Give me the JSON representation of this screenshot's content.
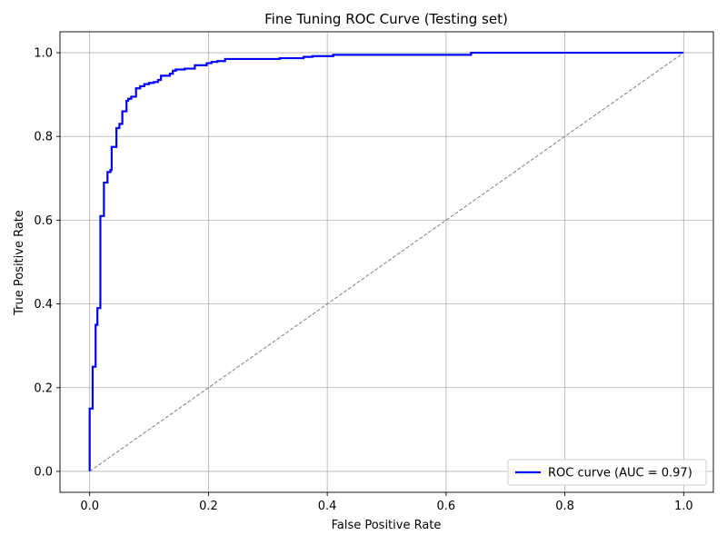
{
  "chart_data": {
    "type": "line",
    "title": "Fine Tuning ROC Curve (Testing set)",
    "xlabel": "False Positive Rate",
    "ylabel": "True Positive Rate",
    "xlim": [
      -0.05,
      1.05
    ],
    "ylim": [
      -0.05,
      1.05
    ],
    "xticks": [
      "0.0",
      "0.2",
      "0.4",
      "0.6",
      "0.8",
      "1.0"
    ],
    "yticks": [
      "0.0",
      "0.2",
      "0.4",
      "0.6",
      "0.8",
      "1.0"
    ],
    "grid": true,
    "legend_position": "lower-right",
    "series": [
      {
        "name": "ROC curve (AUC = 0.97)",
        "color": "#0000ff",
        "style": "step",
        "points": [
          [
            0.0,
            0.0
          ],
          [
            0.0,
            0.15
          ],
          [
            0.005,
            0.15
          ],
          [
            0.005,
            0.25
          ],
          [
            0.01,
            0.25
          ],
          [
            0.01,
            0.35
          ],
          [
            0.013,
            0.35
          ],
          [
            0.013,
            0.39
          ],
          [
            0.018,
            0.39
          ],
          [
            0.018,
            0.61
          ],
          [
            0.024,
            0.61
          ],
          [
            0.024,
            0.69
          ],
          [
            0.03,
            0.69
          ],
          [
            0.03,
            0.715
          ],
          [
            0.035,
            0.715
          ],
          [
            0.035,
            0.72
          ],
          [
            0.037,
            0.72
          ],
          [
            0.037,
            0.775
          ],
          [
            0.045,
            0.775
          ],
          [
            0.045,
            0.82
          ],
          [
            0.05,
            0.82
          ],
          [
            0.05,
            0.83
          ],
          [
            0.055,
            0.83
          ],
          [
            0.055,
            0.86
          ],
          [
            0.062,
            0.86
          ],
          [
            0.062,
            0.885
          ],
          [
            0.065,
            0.885
          ],
          [
            0.065,
            0.89
          ],
          [
            0.07,
            0.89
          ],
          [
            0.07,
            0.895
          ],
          [
            0.078,
            0.895
          ],
          [
            0.078,
            0.915
          ],
          [
            0.085,
            0.915
          ],
          [
            0.085,
            0.92
          ],
          [
            0.092,
            0.92
          ],
          [
            0.092,
            0.925
          ],
          [
            0.1,
            0.925
          ],
          [
            0.1,
            0.928
          ],
          [
            0.108,
            0.928
          ],
          [
            0.108,
            0.93
          ],
          [
            0.115,
            0.93
          ],
          [
            0.115,
            0.935
          ],
          [
            0.12,
            0.935
          ],
          [
            0.12,
            0.945
          ],
          [
            0.135,
            0.945
          ],
          [
            0.135,
            0.95
          ],
          [
            0.14,
            0.95
          ],
          [
            0.14,
            0.957
          ],
          [
            0.145,
            0.957
          ],
          [
            0.145,
            0.96
          ],
          [
            0.16,
            0.96
          ],
          [
            0.16,
            0.962
          ],
          [
            0.177,
            0.962
          ],
          [
            0.177,
            0.97
          ],
          [
            0.197,
            0.97
          ],
          [
            0.197,
            0.975
          ],
          [
            0.205,
            0.975
          ],
          [
            0.205,
            0.978
          ],
          [
            0.215,
            0.978
          ],
          [
            0.215,
            0.98
          ],
          [
            0.228,
            0.98
          ],
          [
            0.228,
            0.985
          ],
          [
            0.32,
            0.985
          ],
          [
            0.32,
            0.987
          ],
          [
            0.36,
            0.987
          ],
          [
            0.36,
            0.99
          ],
          [
            0.375,
            0.99
          ],
          [
            0.375,
            0.992
          ],
          [
            0.41,
            0.992
          ],
          [
            0.41,
            0.995
          ],
          [
            0.642,
            0.995
          ],
          [
            0.642,
            1.0
          ],
          [
            1.0,
            1.0
          ]
        ]
      },
      {
        "name": "",
        "color": "#808080",
        "style": "dashed",
        "points": [
          [
            0.0,
            0.0
          ],
          [
            1.0,
            1.0
          ]
        ]
      }
    ]
  }
}
